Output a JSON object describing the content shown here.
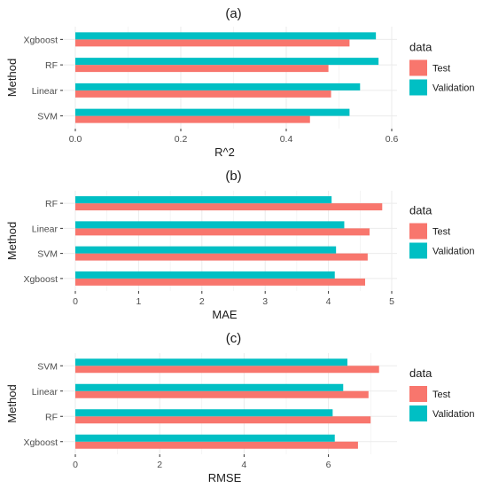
{
  "colors": {
    "test": "#F8766D",
    "validation": "#00BFC4",
    "panel_bg": "#ffffff",
    "grid": "#ebebeb"
  },
  "chart_data": [
    {
      "type": "bar",
      "orientation": "horizontal",
      "title": "(a)",
      "xlabel": "R^2",
      "ylabel": "Method",
      "categories": [
        "Xgboost",
        "RF",
        "Linear",
        "SVM"
      ],
      "series": [
        {
          "name": "Test",
          "values": [
            0.52,
            0.48,
            0.485,
            0.445
          ]
        },
        {
          "name": "Validation",
          "values": [
            0.57,
            0.575,
            0.54,
            0.52
          ]
        }
      ],
      "xlim": [
        0,
        0.6
      ],
      "xticks": [
        0.0,
        0.2,
        0.4,
        0.6
      ],
      "xtick_labels": [
        "0.0",
        "0.2",
        "0.4",
        "0.6"
      ],
      "legend": {
        "title": "data",
        "position": "right"
      },
      "grid": true
    },
    {
      "type": "bar",
      "orientation": "horizontal",
      "title": "(b)",
      "xlabel": "MAE",
      "ylabel": "Method",
      "categories": [
        "RF",
        "Linear",
        "SVM",
        "Xgboost"
      ],
      "series": [
        {
          "name": "Test",
          "values": [
            4.85,
            4.65,
            4.62,
            4.58
          ]
        },
        {
          "name": "Validation",
          "values": [
            4.05,
            4.25,
            4.12,
            4.1
          ]
        }
      ],
      "xlim": [
        0,
        5
      ],
      "xticks": [
        0,
        1,
        2,
        3,
        4,
        5
      ],
      "xtick_labels": [
        "0",
        "1",
        "2",
        "3",
        "4",
        "5"
      ],
      "legend": {
        "title": "data",
        "position": "right"
      },
      "grid": true
    },
    {
      "type": "bar",
      "orientation": "horizontal",
      "title": "(c)",
      "xlabel": "RMSE",
      "ylabel": "Method",
      "categories": [
        "SVM",
        "Linear",
        "RF",
        "Xgboost"
      ],
      "series": [
        {
          "name": "Test",
          "values": [
            7.2,
            6.95,
            7.0,
            6.7
          ]
        },
        {
          "name": "Validation",
          "values": [
            6.45,
            6.35,
            6.1,
            6.15
          ]
        }
      ],
      "xlim": [
        0,
        7.5
      ],
      "xticks": [
        0,
        2,
        4,
        6
      ],
      "xtick_labels": [
        "0",
        "2",
        "4",
        "6"
      ],
      "legend": {
        "title": "data",
        "position": "right"
      },
      "grid": true
    }
  ]
}
